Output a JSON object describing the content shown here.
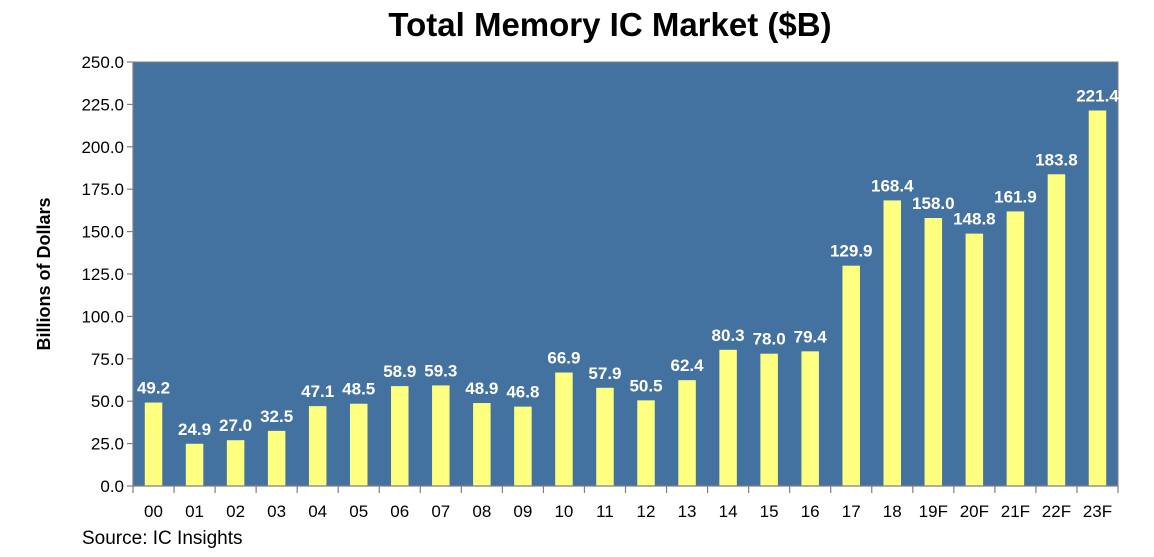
{
  "chart_data": {
    "type": "bar",
    "title": "Total Memory IC Market ($B)",
    "ylabel": "Billions of Dollars",
    "xlabel": "",
    "ylim": [
      0,
      250
    ],
    "ytick_step": 25,
    "ytick_labels": [
      "0.0",
      "25.0",
      "50.0",
      "75.0",
      "100.0",
      "125.0",
      "150.0",
      "175.0",
      "200.0",
      "225.0",
      "250.0"
    ],
    "categories": [
      "00",
      "01",
      "02",
      "03",
      "04",
      "05",
      "06",
      "07",
      "08",
      "09",
      "10",
      "11",
      "12",
      "13",
      "14",
      "15",
      "16",
      "17",
      "18",
      "19F",
      "20F",
      "21F",
      "22F",
      "23F"
    ],
    "values": [
      49.2,
      24.9,
      27.0,
      32.5,
      47.1,
      48.5,
      58.9,
      59.3,
      48.9,
      46.8,
      66.9,
      57.9,
      50.5,
      62.4,
      80.3,
      78.0,
      79.4,
      129.9,
      168.4,
      158.0,
      148.8,
      161.9,
      183.8,
      221.4
    ],
    "value_labels": [
      "49.2",
      "24.9",
      "27.0",
      "32.5",
      "47.1",
      "48.5",
      "58.9",
      "59.3",
      "48.9",
      "46.8",
      "66.9",
      "57.9",
      "50.5",
      "62.4",
      "80.3",
      "78.0",
      "79.4",
      "129.9",
      "168.4",
      "158.0",
      "148.8",
      "161.9",
      "183.8",
      "221.4"
    ],
    "grid": false,
    "legend": "none",
    "colors": {
      "plot_background": "#4472A0",
      "bar": "#FFFF80",
      "data_label": "#FFFFFF"
    }
  },
  "source": "Source:  IC Insights"
}
